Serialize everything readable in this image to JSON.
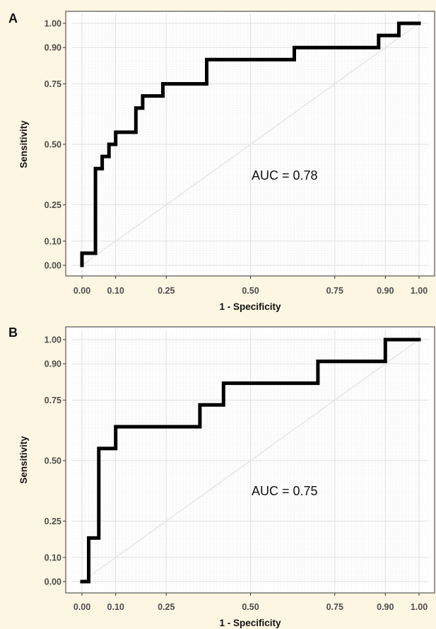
{
  "chart_data": [
    {
      "type": "line",
      "panel": "A",
      "xlabel": "1 - Specificity",
      "ylabel": "Sensitivity",
      "xlim": [
        0,
        1
      ],
      "ylim": [
        0,
        1
      ],
      "xticks": [
        0.0,
        0.1,
        0.25,
        0.5,
        0.75,
        0.9,
        1.0
      ],
      "yticks": [
        0.0,
        0.1,
        0.25,
        0.5,
        0.75,
        0.9,
        1.0
      ],
      "xtick_labels": [
        "0.00",
        "0.10",
        "0.25",
        "0.50",
        "0.75",
        "0.90",
        "1.00"
      ],
      "ytick_labels": [
        "0.00",
        "0.10",
        "0.25",
        "0.50",
        "0.75",
        "0.90",
        "1.00"
      ],
      "grid": true,
      "annotation": "AUC = 0.78",
      "series": [
        {
          "x": [
            0.0,
            0.0,
            0.04,
            0.04,
            0.06,
            0.06,
            0.08,
            0.08,
            0.1,
            0.1,
            0.16,
            0.16,
            0.18,
            0.18,
            0.24,
            0.24,
            0.37,
            0.37,
            0.63,
            0.63,
            0.88,
            0.88,
            0.94,
            0.94,
            1.0
          ],
          "y": [
            0.0,
            0.05,
            0.05,
            0.4,
            0.4,
            0.45,
            0.45,
            0.5,
            0.5,
            0.55,
            0.55,
            0.65,
            0.65,
            0.7,
            0.7,
            0.75,
            0.75,
            0.85,
            0.85,
            0.9,
            0.9,
            0.95,
            0.95,
            1.0,
            1.0
          ]
        }
      ]
    },
    {
      "type": "line",
      "panel": "B",
      "xlabel": "1 - Specificity",
      "ylabel": "Sensitivity",
      "xlim": [
        0,
        1
      ],
      "ylim": [
        0,
        1
      ],
      "xticks": [
        0.0,
        0.1,
        0.25,
        0.5,
        0.75,
        0.9,
        1.0
      ],
      "yticks": [
        0.0,
        0.1,
        0.25,
        0.5,
        0.75,
        0.9,
        1.0
      ],
      "xtick_labels": [
        "0.00",
        "0.10",
        "0.25",
        "0.50",
        "0.75",
        "0.90",
        "1.00"
      ],
      "ytick_labels": [
        "0.00",
        "0.10",
        "0.25",
        "0.50",
        "0.75",
        "0.90",
        "1.00"
      ],
      "grid": true,
      "annotation": "AUC = 0.75",
      "series": [
        {
          "x": [
            0.0,
            0.02,
            0.02,
            0.05,
            0.05,
            0.1,
            0.1,
            0.35,
            0.35,
            0.42,
            0.42,
            0.7,
            0.7,
            0.9,
            0.9,
            1.0
          ],
          "y": [
            0.0,
            0.0,
            0.18,
            0.18,
            0.55,
            0.55,
            0.64,
            0.64,
            0.73,
            0.73,
            0.82,
            0.82,
            0.91,
            0.91,
            1.0,
            1.0
          ]
        }
      ]
    }
  ]
}
